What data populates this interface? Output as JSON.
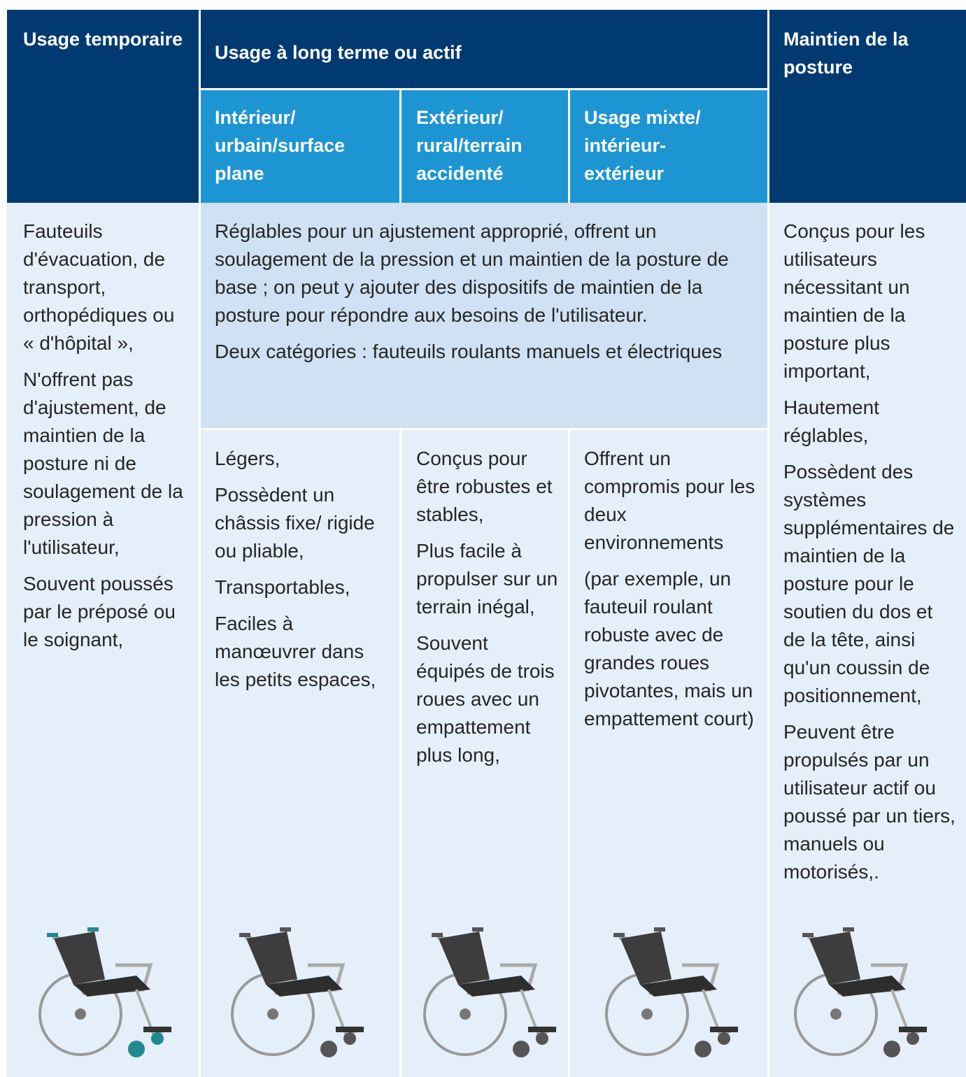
{
  "header": {
    "temporary": "Usage temporaire",
    "long_term": "Usage à long terme ou actif",
    "posture": "Maintien de la posture",
    "sub": [
      "Intérieur/ urbain/surface plane",
      "Extérieur/ rural/terrain accidenté",
      "Usage mixte/ intérieur-extérieur"
    ]
  },
  "body": {
    "temporary": [
      "Fauteuils d'évacuation, de transport, orthopédiques ou « d'hôpital »,",
      "N'offrent pas d'ajustement, de maintien de la posture ni de soulagement de la pression à l'utilisateur,",
      "Souvent poussés par le préposé ou le soignant,"
    ],
    "shared": [
      "Réglables pour un ajustement approprié, offrent un soulagement de la pression et un maintien de la posture de base ; on peut y ajouter des dispositifs de maintien de la posture pour répondre aux besoins de l'utilisateur.",
      "Deux catégories : fauteuils roulants manuels et électriques"
    ],
    "sub": [
      [
        "Légers,",
        "Possèdent un châssis fixe/ rigide ou pliable,",
        "Transportables,",
        "Faciles à manœuvrer dans les petits espaces,"
      ],
      [
        "Conçus pour être robustes et stables,",
        "Plus facile à propulser sur un terrain inégal,",
        "Souvent équipés de trois roues avec un empattement plus long,"
      ],
      [
        "Offrent un compromis pour les deux environnements",
        "(par exemple, un fauteuil roulant robuste avec de grandes roues pivotantes, mais un empattement court)"
      ]
    ],
    "posture": [
      "Conçus pour les utilisateurs nécessitant un maintien de la posture plus important,",
      "Hautement réglables,",
      "Possèdent des systèmes supplémentaires de maintien de la posture pour le soutien du dos et de la tête, ainsi qu'un coussin de positionnement,",
      "Peuvent être propulsés par un utilisateur actif ou poussé par un tiers, manuels ou motorisés,."
    ]
  }
}
